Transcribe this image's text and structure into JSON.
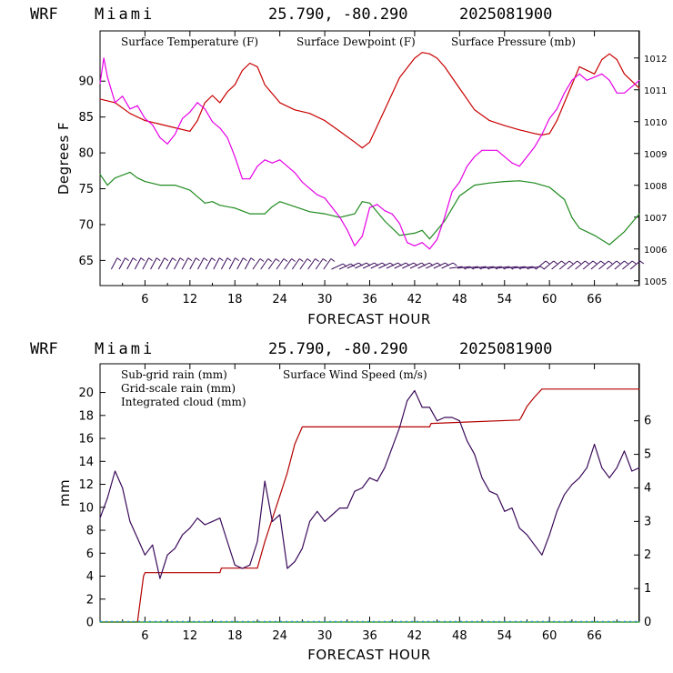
{
  "colors": {
    "temperature": "#c80000",
    "dewpoint": "#1f8a1f",
    "pressure": "#e600e6",
    "wind_barbs": "#3a0a5a",
    "subgrid_rain": "#b40000",
    "gridscale_rain": "#1f8a1f",
    "cloud": "#1e90d0",
    "wind_speed": "#3a0a5a"
  },
  "chart_data": [
    {
      "type": "line",
      "header": {
        "model": "WRF",
        "location": "Miami",
        "coords": "25.790, -80.290",
        "date": "2025081900"
      },
      "xlabel": "FORECAST HOUR",
      "ylabel": "Degrees F",
      "xlim": [
        0,
        72
      ],
      "ylim": [
        61.5,
        97
      ],
      "y2lim": [
        1004.85,
        1012.85
      ],
      "xticks": [
        "6",
        "12",
        "18",
        "24",
        "30",
        "36",
        "42",
        "48",
        "54",
        "60",
        "66"
      ],
      "yticks": [
        "65",
        "70",
        "75",
        "80",
        "85",
        "90"
      ],
      "y2ticks": [
        "1005",
        "1006",
        "1007",
        "1008",
        "1009",
        "1010",
        "1011",
        "1012"
      ],
      "legend": [
        "Surface Temperature (F)",
        "Surface Dewpoint (F)",
        "Surface Pressure (mb)"
      ],
      "series": [
        {
          "name": "Surface Temperature (F)",
          "axis": "left",
          "x": [
            0,
            2,
            4,
            6,
            8,
            10,
            12,
            13,
            14,
            15,
            16,
            17,
            18,
            19,
            20,
            21,
            22,
            24,
            26,
            28,
            30,
            32,
            34,
            35,
            36,
            38,
            40,
            42,
            43,
            44,
            45,
            46,
            48,
            50,
            52,
            54,
            56,
            58,
            59,
            60,
            61,
            62,
            64,
            66,
            67,
            68,
            69,
            70,
            72
          ],
          "y": [
            87.5,
            87,
            85.5,
            84.5,
            84,
            83.5,
            83,
            84.5,
            87,
            88,
            87,
            88.5,
            89.5,
            91.5,
            92.5,
            92,
            89.5,
            87,
            86,
            85.5,
            84.5,
            83,
            81.5,
            80.7,
            81.5,
            86,
            90.5,
            93.2,
            94,
            93.8,
            93.2,
            92,
            89,
            86,
            84.5,
            83.8,
            83.2,
            82.7,
            82.5,
            82.7,
            84.5,
            87,
            92,
            91,
            93,
            93.8,
            93,
            91,
            89
          ]
        },
        {
          "name": "Surface Dewpoint (F)",
          "axis": "left",
          "x": [
            0,
            1,
            2,
            4,
            5,
            6,
            8,
            10,
            12,
            14,
            15,
            16,
            18,
            20,
            22,
            23,
            24,
            26,
            28,
            30,
            32,
            34,
            35,
            36,
            38,
            40,
            42,
            43,
            44,
            46,
            48,
            50,
            52,
            54,
            56,
            58,
            60,
            62,
            63,
            64,
            66,
            68,
            70,
            72
          ],
          "y": [
            77,
            75.5,
            76.5,
            77.3,
            76.5,
            76,
            75.5,
            75.5,
            74.8,
            73,
            73.2,
            72.7,
            72.3,
            71.5,
            71.5,
            72.5,
            73.2,
            72.5,
            71.8,
            71.5,
            71,
            71.5,
            73.2,
            73,
            70.5,
            68.5,
            68.8,
            69.2,
            68,
            70.5,
            74,
            75.5,
            75.8,
            76,
            76.1,
            75.8,
            75.2,
            73.5,
            71,
            69.5,
            68.5,
            67.2,
            69,
            71.5
          ]
        },
        {
          "name": "Surface Pressure (mb)",
          "axis": "right",
          "x": [
            0,
            0.5,
            1,
            2,
            3,
            4,
            5,
            6,
            7,
            8,
            9,
            10,
            11,
            12,
            13,
            14,
            15,
            16,
            17,
            18,
            19,
            20,
            21,
            22,
            23,
            24,
            25,
            26,
            27,
            28,
            29,
            30,
            31,
            32,
            33,
            34,
            35,
            36,
            37,
            38,
            39,
            40,
            41,
            42,
            43,
            44,
            45,
            46,
            47,
            48,
            49,
            50,
            51,
            52,
            53,
            54,
            55,
            56,
            57,
            58,
            59,
            60,
            61,
            62,
            63,
            64,
            65,
            66,
            67,
            68,
            69,
            70,
            71,
            72
          ],
          "y": [
            1011.2,
            1012,
            1011.4,
            1010.6,
            1010.8,
            1010.4,
            1010.5,
            1010.1,
            1009.9,
            1009.5,
            1009.3,
            1009.6,
            1010.1,
            1010.3,
            1010.6,
            1010.4,
            1010,
            1009.8,
            1009.5,
            1008.9,
            1008.2,
            1008.2,
            1008.6,
            1008.8,
            1008.7,
            1008.8,
            1008.6,
            1008.4,
            1008.1,
            1007.9,
            1007.7,
            1007.6,
            1007.3,
            1007,
            1006.6,
            1006.1,
            1006.4,
            1007.3,
            1007.4,
            1007.2,
            1007.1,
            1006.8,
            1006.2,
            1006.1,
            1006.2,
            1006,
            1006.3,
            1007,
            1007.8,
            1008.1,
            1008.6,
            1008.9,
            1009.1,
            1009.1,
            1009.1,
            1008.9,
            1008.7,
            1008.6,
            1008.9,
            1009.2,
            1009.6,
            1010.1,
            1010.4,
            1010.9,
            1011.3,
            1011.5,
            1011.3,
            1011.4,
            1011.5,
            1011.3,
            1010.9,
            1010.9,
            1011.1,
            1011.3
          ]
        }
      ]
    },
    {
      "type": "line",
      "header": {
        "model": "WRF",
        "location": "Miami",
        "coords": "25.790, -80.290",
        "date": "2025081900"
      },
      "xlabel": "FORECAST HOUR",
      "ylabel": "mm",
      "xlim": [
        0,
        72
      ],
      "ylim": [
        0,
        22.5
      ],
      "y2lim": [
        0,
        7.7
      ],
      "xticks": [
        "6",
        "12",
        "18",
        "24",
        "30",
        "36",
        "42",
        "48",
        "54",
        "60",
        "66"
      ],
      "yticks": [
        "0",
        "2",
        "4",
        "6",
        "8",
        "10",
        "12",
        "14",
        "16",
        "18",
        "20"
      ],
      "y2ticks": [
        "0",
        "1",
        "2",
        "3",
        "4",
        "5",
        "6"
      ],
      "legend": [
        "Sub-grid rain (mm)",
        "Grid-scale rain (mm)",
        "Integrated cloud (mm)",
        "Surface Wind Speed (m/s)"
      ],
      "series": [
        {
          "name": "Sub-grid rain (mm)",
          "axis": "left",
          "x": [
            0,
            5,
            5.2,
            5.8,
            6,
            16,
            16.2,
            21,
            22,
            23,
            24,
            25,
            26,
            27,
            44,
            44.2,
            56,
            56.2,
            57,
            58,
            59,
            72
          ],
          "y": [
            0,
            0,
            1,
            4,
            4.3,
            4.3,
            4.7,
            4.7,
            7,
            9,
            11,
            13,
            15.5,
            17,
            17,
            17.3,
            17.6,
            17.8,
            18.8,
            19.6,
            20.3,
            20.3
          ]
        },
        {
          "name": "Grid-scale rain (mm)",
          "axis": "left",
          "x": [
            0,
            72
          ],
          "y": [
            0,
            0
          ]
        },
        {
          "name": "Integrated cloud (mm)",
          "axis": "left",
          "x": [
            0,
            72
          ],
          "y": [
            0.05,
            0.05
          ]
        },
        {
          "name": "Surface Wind Speed (m/s)",
          "axis": "right",
          "x": [
            0,
            1,
            2,
            3,
            4,
            5,
            6,
            7,
            8,
            9,
            10,
            11,
            12,
            13,
            14,
            15,
            16,
            17,
            18,
            19,
            20,
            21,
            22,
            23,
            24,
            25,
            26,
            27,
            28,
            29,
            30,
            31,
            32,
            33,
            34,
            35,
            36,
            37,
            38,
            39,
            40,
            41,
            42,
            43,
            44,
            45,
            46,
            47,
            48,
            49,
            50,
            51,
            52,
            53,
            54,
            55,
            56,
            57,
            58,
            59,
            60,
            61,
            62,
            63,
            64,
            65,
            66,
            67,
            68,
            69,
            70,
            71,
            72
          ],
          "y": [
            3.1,
            3.7,
            4.5,
            4,
            3,
            2.5,
            2,
            2.3,
            1.3,
            2,
            2.2,
            2.6,
            2.8,
            3.1,
            2.9,
            3,
            3.1,
            2.4,
            1.7,
            1.6,
            1.7,
            2.4,
            4.2,
            3,
            3.2,
            1.6,
            1.8,
            2.2,
            3,
            3.3,
            3,
            3.2,
            3.4,
            3.4,
            3.9,
            4,
            4.3,
            4.2,
            4.6,
            5.2,
            5.8,
            6.6,
            6.9,
            6.4,
            6.4,
            6,
            6.1,
            6.1,
            6,
            5.4,
            5,
            4.3,
            3.9,
            3.8,
            3.3,
            3.4,
            2.8,
            2.6,
            2.3,
            2,
            2.6,
            3.3,
            3.8,
            4.1,
            4.3,
            4.6,
            5.3,
            4.6,
            4.3,
            4.6,
            5.1,
            4.5,
            4.6
          ]
        }
      ]
    }
  ]
}
